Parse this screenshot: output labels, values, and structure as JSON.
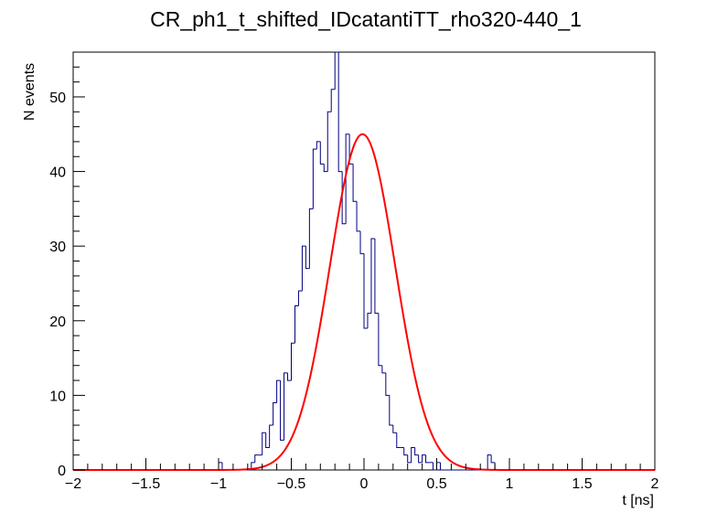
{
  "chart_data": {
    "type": "histogram",
    "title": "CR_ph1_t_shifted_IDcatantiTT_rho320-440_1",
    "xlabel": "t [ns]",
    "ylabel": "N events",
    "xlim": [
      -2,
      2
    ],
    "ylim": [
      0,
      56
    ],
    "x_major_ticks": [
      -2,
      -1.5,
      -1,
      -0.5,
      0,
      0.5,
      1,
      1.5,
      2
    ],
    "x_tick_labels": [
      "−2",
      "−1.5",
      "−1",
      "−0.5",
      "0",
      "0.5",
      "1",
      "1.5",
      "2"
    ],
    "y_major_ticks": [
      0,
      10,
      20,
      30,
      40,
      50
    ],
    "y_tick_labels": [
      "0",
      "10",
      "20",
      "30",
      "40",
      "50"
    ],
    "grid": false,
    "legend": "none",
    "histogram": {
      "bin_width": 0.025,
      "bin_low_edges": [
        -1.0,
        -0.775,
        -0.75,
        -0.725,
        -0.7,
        -0.675,
        -0.65,
        -0.625,
        -0.6,
        -0.575,
        -0.55,
        -0.525,
        -0.5,
        -0.475,
        -0.45,
        -0.425,
        -0.4,
        -0.375,
        -0.35,
        -0.325,
        -0.3,
        -0.275,
        -0.25,
        -0.225,
        -0.2,
        -0.175,
        -0.15,
        -0.125,
        -0.1,
        -0.075,
        -0.05,
        -0.025,
        0.0,
        0.025,
        0.05,
        0.075,
        0.1,
        0.125,
        0.15,
        0.175,
        0.2,
        0.225,
        0.25,
        0.275,
        0.3,
        0.325,
        0.35,
        0.375,
        0.4,
        0.425,
        0.45,
        0.475,
        0.5,
        0.525,
        0.55,
        0.575,
        0.6,
        0.625,
        0.65,
        0.675,
        0.7,
        0.725,
        0.75,
        0.775,
        0.8,
        0.825,
        0.85,
        0.875
      ],
      "counts": [
        1,
        1,
        2,
        2,
        5,
        3,
        6,
        9,
        12,
        4,
        13,
        12,
        17,
        22,
        24,
        30,
        27,
        35,
        43,
        44,
        41,
        40,
        48,
        51,
        57,
        40,
        33,
        45,
        41,
        36,
        32,
        29,
        19,
        21,
        31,
        21,
        14,
        13,
        10,
        6,
        5,
        3,
        3,
        2,
        1,
        3,
        2,
        1,
        2,
        1,
        1,
        0,
        1,
        0,
        0,
        0,
        0,
        0,
        0,
        0,
        0,
        0,
        0,
        0,
        0,
        0,
        2,
        1
      ],
      "line_color": "#000080"
    },
    "fit": {
      "type": "gaussian",
      "amplitude": 45,
      "mean": -0.01,
      "sigma": 0.225,
      "line_color": "#ff0000"
    }
  }
}
